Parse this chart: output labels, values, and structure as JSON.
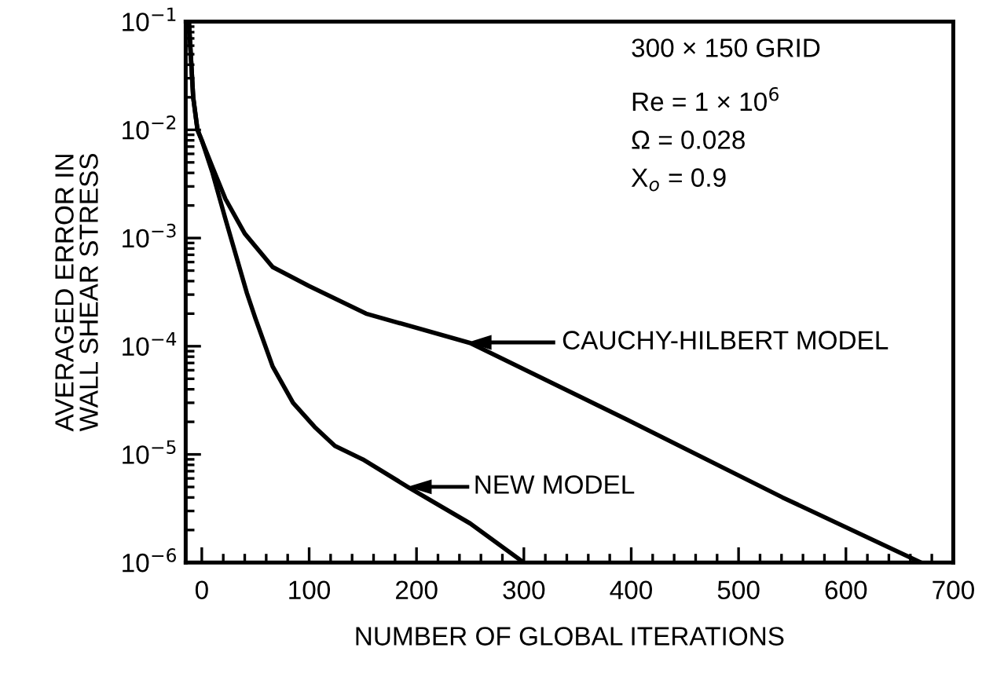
{
  "chart_data": {
    "type": "line",
    "xlabel": "NUMBER OF GLOBAL ITERATIONS",
    "ylabel": "AVERAGED ERROR IN\nWALL SHEAR STRESS",
    "log": "y",
    "xlim": [
      -15,
      700
    ],
    "xticks": [
      0,
      100,
      200,
      300,
      400,
      500,
      600,
      700
    ],
    "ylim": [
      1e-06,
      0.1
    ],
    "yticks": [
      {
        "value": 1e-06,
        "label": "10$^{−6}$"
      },
      {
        "value": 1e-05,
        "label": "10$^{−5}$"
      },
      {
        "value": 0.0001,
        "label": "10$^{−4}$"
      },
      {
        "value": 0.001,
        "label": "10$^{−3}$"
      },
      {
        "value": 0.01,
        "label": "10$^{−2}$"
      },
      {
        "value": 0.1,
        "label": "10$^{−1}$"
      }
    ],
    "grid": false,
    "legend": false,
    "marker": "none",
    "line_style": "solid",
    "series": [
      {
        "color": "#000000",
        "x": [
          -12,
          -8,
          -4,
          0,
          10,
          22,
          30,
          42,
          50,
          66,
          85,
          105,
          124,
          150,
          192,
          250,
          300
        ],
        "values": [
          0.1,
          0.02,
          0.01,
          0.008,
          0.004,
          0.0015,
          0.0008,
          0.00031,
          0.00018,
          6.5e-05,
          3e-05,
          1.8e-05,
          1.2e-05,
          9e-06,
          5e-06,
          2.3e-06,
          1e-06
        ]
      },
      {
        "color": "#000000",
        "x": [
          -12,
          -8,
          -4,
          0,
          10,
          22,
          40,
          66,
          100,
          153,
          250,
          396,
          541,
          670
        ],
        "values": [
          0.1,
          0.02,
          0.01,
          0.008,
          0.0045,
          0.0023,
          0.0011,
          0.00054,
          0.00036,
          0.0002,
          0.000107,
          2.1e-05,
          4e-06,
          1e-06
        ]
      }
    ],
    "annotations": [
      "300 × 150 GRID",
      "Re = 1 × 10$^{6}$",
      "Ω = 0.028",
      "X$_{o}$ = 0.9",
      "CAUCHY-HILBERT MODEL",
      "NEW MODEL"
    ]
  }
}
